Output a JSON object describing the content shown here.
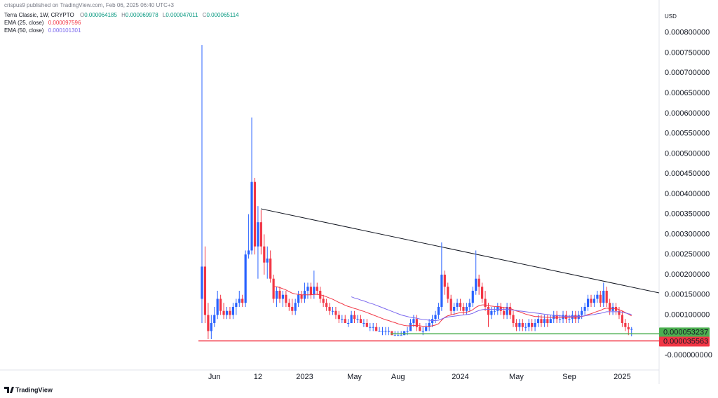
{
  "chart_data": {
    "type": "candlestick",
    "publisher_line": "crispus9 published on TradingView.com, Feb 06, 2025 06:40 UTC+3",
    "title": "Terra Classic, 1W, CRYPTO",
    "ohlc_labels": [
      "O",
      "H",
      "L",
      "C"
    ],
    "currency": "USD",
    "brand": "TradingView",
    "up_color": "#2962ff",
    "down_color": "#f23645",
    "legend_value_color": "#089981",
    "grid": false,
    "categories": [
      null,
      null,
      null,
      null,
      "Jun",
      null,
      null,
      null,
      null,
      null,
      null,
      null,
      null,
      null,
      null,
      null,
      null,
      null,
      "12",
      null,
      null,
      null,
      null,
      null,
      null,
      null,
      null,
      null,
      null,
      null,
      null,
      null,
      null,
      "2023",
      null,
      null,
      null,
      null,
      null,
      null,
      null,
      null,
      null,
      null,
      null,
      null,
      null,
      null,
      null,
      "May",
      null,
      null,
      null,
      null,
      null,
      null,
      null,
      null,
      null,
      null,
      null,
      null,
      null,
      "Aug",
      null,
      null,
      null,
      null,
      null,
      null,
      null,
      null,
      null,
      null,
      null,
      null,
      null,
      null,
      null,
      null,
      null,
      null,
      null,
      "2024",
      null,
      null,
      null,
      null,
      null,
      null,
      null,
      null,
      null,
      null,
      null,
      null,
      null,
      null,
      null,
      null,
      null,
      "May",
      null,
      null,
      null,
      null,
      null,
      null,
      null,
      null,
      null,
      null,
      null,
      null,
      null,
      null,
      null,
      null,
      "Sep",
      null,
      null,
      null,
      null,
      null,
      null,
      null,
      null,
      null,
      null,
      null,
      null,
      null,
      null,
      null,
      null,
      "2025",
      null,
      null,
      null
    ],
    "open": [
      0.00014,
      0.00022,
      0.0001,
      6e-05,
      8e-05,
      0.0001,
      0.00014,
      0.00011,
      0.0001,
      0.00011,
      0.0001,
      0.00012,
      0.00013,
      0.00014,
      0.00013,
      0.00025,
      0.00026,
      0.00043,
      0.00027,
      0.00033,
      0.00027,
      0.00023,
      0.00024,
      0.00019,
      0.00014,
      0.00016,
      0.00014,
      0.00015,
      0.00013,
      0.00012,
      0.00011,
      0.00013,
      0.00015,
      0.00014,
      0.00016,
      0.00017,
      0.00015,
      0.00017,
      0.00016,
      0.00014,
      0.00013,
      0.00012,
      0.00011,
      0.00011,
      0.0001,
      9e-05,
      9e-05,
      8e-05,
      8e-05,
      0.0001,
      9e-05,
      9e-05,
      8e-05,
      8e-05,
      7e-05,
      7e-05,
      7e-05,
      6e-05,
      6e-05,
      6e-05,
      6e-05,
      6e-05,
      5e-05,
      5e-05,
      5e-05,
      5e-05,
      6e-05,
      6e-05,
      8e-05,
      9e-05,
      7e-05,
      6e-05,
      6e-05,
      7e-05,
      8e-05,
      9e-05,
      0.0001,
      0.00012,
      0.0002,
      0.00017,
      0.00014,
      0.00011,
      0.00012,
      0.00013,
      0.00012,
      0.00011,
      0.00012,
      0.00013,
      0.00016,
      0.00019,
      0.00017,
      0.00014,
      0.00012,
      0.0001,
      0.00011,
      0.00011,
      0.00012,
      0.00011,
      0.0001,
      0.00012,
      0.0001,
      8e-05,
      7e-05,
      8e-05,
      7e-05,
      7e-05,
      8e-05,
      7e-05,
      8e-05,
      9e-05,
      8e-05,
      9e-05,
      8e-05,
      9e-05,
      0.0001,
      9e-05,
      9e-05,
      0.0001,
      9e-05,
      9e-05,
      0.0001,
      9e-05,
      0.0001,
      0.00011,
      0.00012,
      0.00014,
      0.00013,
      0.00014,
      0.00015,
      0.00013,
      0.00016,
      0.00013,
      0.00011,
      0.00012,
      0.00011,
      0.0001,
      8e-05,
      7e-05,
      6.4185e-05
    ],
    "high": [
      0.00077,
      0.00027,
      0.00013,
      0.0001,
      0.00012,
      0.00016,
      0.00015,
      0.00013,
      0.00012,
      0.00012,
      0.00013,
      0.00014,
      0.00016,
      0.00015,
      0.00026,
      0.00035,
      0.00059,
      0.00044,
      0.00037,
      0.00036,
      0.0003,
      0.00027,
      0.00026,
      0.0002,
      0.00017,
      0.00017,
      0.00016,
      0.00016,
      0.00014,
      0.00014,
      0.00014,
      0.00016,
      0.00016,
      0.00018,
      0.00018,
      0.00018,
      0.00021,
      0.00018,
      0.00017,
      0.00015,
      0.00014,
      0.00013,
      0.00012,
      0.00012,
      0.00011,
      0.0001,
      0.0001,
      9e-05,
      0.00011,
      0.00011,
      0.0001,
      0.0001,
      9e-05,
      9e-05,
      8e-05,
      8e-05,
      8e-05,
      7e-05,
      7e-05,
      7e-05,
      7e-05,
      6e-05,
      6e-05,
      6e-05,
      6e-05,
      6e-05,
      7e-05,
      9e-05,
      0.0001,
      0.0001,
      8e-05,
      7e-05,
      8e-05,
      9e-05,
      0.0001,
      0.00011,
      0.00013,
      0.00028,
      0.00021,
      0.00018,
      0.00015,
      0.00013,
      0.00014,
      0.00014,
      0.00013,
      0.00013,
      0.00014,
      0.00017,
      0.00026,
      0.0002,
      0.00018,
      0.00016,
      0.00013,
      0.00012,
      0.00012,
      0.00013,
      0.00013,
      0.00012,
      0.00013,
      0.00013,
      0.00011,
      9e-05,
      9e-05,
      9e-05,
      8e-05,
      9e-05,
      9e-05,
      9e-05,
      0.0001,
      0.0001,
      0.0001,
      0.0001,
      0.0001,
      0.00011,
      0.00011,
      0.0001,
      0.00011,
      0.00011,
      0.0001,
      0.00011,
      0.00011,
      0.00011,
      0.00012,
      0.00013,
      0.00015,
      0.00015,
      0.00015,
      0.00016,
      0.00016,
      0.00018,
      0.00017,
      0.00014,
      0.00013,
      0.00013,
      0.00012,
      0.00011,
      9e-05,
      8e-05,
      6.9978e-05
    ],
    "low": [
      8e-05,
      8e-05,
      4e-05,
      4e-05,
      7e-05,
      9e-05,
      0.0001,
      9e-05,
      9e-05,
      9e-05,
      9e-05,
      0.0001,
      0.00012,
      0.00012,
      0.00012,
      0.00024,
      0.00025,
      0.00025,
      0.00019,
      0.00025,
      0.0002,
      0.00019,
      0.00018,
      0.00013,
      0.00012,
      0.00013,
      0.00012,
      0.00012,
      0.00011,
      0.0001,
      0.0001,
      0.00012,
      0.00013,
      0.00013,
      0.00014,
      0.00014,
      0.00014,
      0.00015,
      0.00013,
      0.00012,
      0.00011,
      0.0001,
      0.0001,
      9e-05,
      8e-05,
      8e-05,
      8e-05,
      7e-05,
      8e-05,
      8e-05,
      8e-05,
      8e-05,
      7e-05,
      7e-05,
      6e-05,
      6e-05,
      6e-05,
      6e-05,
      5e-05,
      5e-05,
      5e-05,
      5e-05,
      5e-05,
      5e-05,
      5e-05,
      5e-05,
      5e-05,
      6e-05,
      7e-05,
      6e-05,
      6e-05,
      5e-05,
      6e-05,
      6e-05,
      7e-05,
      8e-05,
      9e-05,
      0.00011,
      0.00015,
      0.00013,
      0.0001,
      0.0001,
      0.00011,
      0.00011,
      0.0001,
      0.0001,
      0.00011,
      0.00012,
      0.00015,
      0.00015,
      0.00013,
      0.00011,
      7e-05,
      9e-05,
      0.0001,
      0.0001,
      0.0001,
      9e-05,
      9e-05,
      9e-05,
      7e-05,
      6e-05,
      6e-05,
      6e-05,
      6e-05,
      6e-05,
      6e-05,
      6e-05,
      7e-05,
      7e-05,
      7e-05,
      7e-05,
      8e-05,
      8e-05,
      8e-05,
      8e-05,
      8e-05,
      8e-05,
      8e-05,
      8e-05,
      8e-05,
      8e-05,
      9e-05,
      0.0001,
      0.00011,
      0.00012,
      0.00012,
      0.00013,
      0.00012,
      0.00012,
      0.00012,
      0.0001,
      0.0001,
      0.0001,
      9e-05,
      7e-05,
      6e-05,
      5e-05,
      4.7011e-05
    ],
    "close": [
      0.00022,
      0.0001,
      6e-05,
      8e-05,
      0.0001,
      0.00014,
      0.00011,
      0.0001,
      0.00011,
      0.0001,
      0.00012,
      0.00013,
      0.00014,
      0.00013,
      0.00025,
      0.00026,
      0.00043,
      0.00027,
      0.00033,
      0.00027,
      0.00023,
      0.00024,
      0.00019,
      0.00014,
      0.00016,
      0.00014,
      0.00015,
      0.00013,
      0.00012,
      0.00011,
      0.00013,
      0.00015,
      0.00014,
      0.00016,
      0.00017,
      0.00015,
      0.00017,
      0.00016,
      0.00014,
      0.00013,
      0.00012,
      0.00011,
      0.00011,
      0.0001,
      9e-05,
      9e-05,
      8e-05,
      8e-05,
      0.0001,
      9e-05,
      9e-05,
      8e-05,
      8e-05,
      7e-05,
      7e-05,
      7e-05,
      6e-05,
      6e-05,
      6e-05,
      6e-05,
      6e-05,
      5e-05,
      5e-05,
      5e-05,
      5e-05,
      6e-05,
      6e-05,
      8e-05,
      9e-05,
      7e-05,
      6e-05,
      6e-05,
      7e-05,
      8e-05,
      9e-05,
      0.0001,
      0.00012,
      0.0002,
      0.00017,
      0.00014,
      0.00011,
      0.00012,
      0.00013,
      0.00012,
      0.00011,
      0.00012,
      0.00013,
      0.00016,
      0.00019,
      0.00017,
      0.00014,
      0.00012,
      0.0001,
      0.00011,
      0.00011,
      0.00012,
      0.00011,
      0.0001,
      0.00012,
      0.0001,
      8e-05,
      7e-05,
      8e-05,
      7e-05,
      7e-05,
      8e-05,
      7e-05,
      8e-05,
      9e-05,
      8e-05,
      9e-05,
      8e-05,
      9e-05,
      0.0001,
      9e-05,
      9e-05,
      0.0001,
      9e-05,
      9e-05,
      0.0001,
      9e-05,
      0.0001,
      0.00011,
      0.00012,
      0.00014,
      0.00013,
      0.00014,
      0.00015,
      0.00013,
      0.00016,
      0.00013,
      0.00011,
      0.00012,
      0.00011,
      0.0001,
      8e-05,
      7e-05,
      6.4185e-05,
      6.5114e-05
    ],
    "series": [
      {
        "name": "EMA (25, close)",
        "color": "#f23645",
        "values": [
          null,
          null,
          null,
          null,
          null,
          null,
          null,
          null,
          null,
          null,
          null,
          null,
          null,
          null,
          null,
          null,
          null,
          null,
          null,
          null,
          null,
          null,
          null,
          0.00017,
          0.00017,
          0.000168,
          0.000165,
          0.000162,
          0.000158,
          0.000154,
          0.000152,
          0.000151,
          0.00015,
          0.00015,
          0.00015,
          0.00015,
          0.000151,
          0.000151,
          0.00015,
          0.000148,
          0.000145,
          0.000142,
          0.000139,
          0.000135,
          0.000131,
          0.000128,
          0.000124,
          0.000121,
          0.000119,
          0.000116,
          0.000114,
          0.000111,
          0.000109,
          0.000106,
          0.000103,
          0.0001,
          9.7e-05,
          9.4e-05,
          9.1e-05,
          8.8e-05,
          8.6e-05,
          8.3e-05,
          8.1e-05,
          7.8e-05,
          7.6e-05,
          7.4e-05,
          7.3e-05,
          7.3e-05,
          7.4e-05,
          7.4e-05,
          7.3e-05,
          7.2e-05,
          7.2e-05,
          7.2e-05,
          7.3e-05,
          7.5e-05,
          7.8e-05,
          8.7e-05,
          9.4e-05,
          9.8e-05,
          0.0001,
          0.000102,
          0.000104,
          0.000106,
          0.000106,
          0.000107,
          0.000109,
          0.000113,
          0.000119,
          0.000123,
          0.000125,
          0.000125,
          0.000123,
          0.000122,
          0.000121,
          0.000121,
          0.00012,
          0.000118,
          0.000118,
          0.000116,
          0.000113,
          0.00011,
          0.000108,
          0.000105,
          0.000102,
          0.0001,
          9.8e-05,
          9.6e-05,
          9.6e-05,
          9.5e-05,
          9.5e-05,
          9.4e-05,
          9.4e-05,
          9.4e-05,
          9.4e-05,
          9.4e-05,
          9.4e-05,
          9.4e-05,
          9.4e-05,
          9.5e-05,
          9.5e-05,
          9.5e-05,
          9.6e-05,
          9.8e-05,
          0.000101,
          0.000103,
          0.000106,
          0.000109,
          0.000111,
          0.000115,
          0.000117,
          0.000116,
          0.000116,
          0.000116,
          0.000113,
          0.00011,
          0.000106,
          0.000102,
          9.7596e-05
        ]
      },
      {
        "name": "EMA (50, close)",
        "color": "#7b68ee",
        "values": [
          null,
          null,
          null,
          null,
          null,
          null,
          null,
          null,
          null,
          null,
          null,
          null,
          null,
          null,
          null,
          null,
          null,
          null,
          null,
          null,
          null,
          null,
          null,
          null,
          null,
          null,
          null,
          null,
          null,
          null,
          null,
          null,
          null,
          null,
          null,
          null,
          null,
          null,
          null,
          null,
          null,
          null,
          null,
          null,
          null,
          null,
          null,
          null,
          0.000145,
          0.000142,
          0.00014,
          0.000137,
          0.000135,
          0.000132,
          0.000129,
          0.000127,
          0.000124,
          0.000121,
          0.000118,
          0.000115,
          0.000112,
          0.000109,
          0.000106,
          0.000103,
          0.0001,
          9.8e-05,
          9.6e-05,
          9.4e-05,
          9.3e-05,
          9.2e-05,
          9e-05,
          8.9e-05,
          8.8e-05,
          8.7e-05,
          8.6e-05,
          8.6e-05,
          8.7e-05,
          9e-05,
          9.3e-05,
          9.5e-05,
          9.6e-05,
          9.7e-05,
          9.8e-05,
          9.9e-05,
          0.0001,
          0.000101,
          0.000102,
          0.000104,
          0.000108,
          0.000111,
          0.000113,
          0.000114,
          0.000114,
          0.000114,
          0.000114,
          0.000114,
          0.000114,
          0.000114,
          0.000114,
          0.000113,
          0.000112,
          0.000111,
          0.00011,
          0.000109,
          0.000108,
          0.000107,
          0.000106,
          0.000105,
          0.000104,
          0.000103,
          0.000102,
          0.000101,
          0.0001,
          9.9e-05,
          9.8e-05,
          9.8e-05,
          9.7e-05,
          9.7e-05,
          9.7e-05,
          9.7e-05,
          9.7e-05,
          9.7e-05,
          9.7e-05,
          9.8e-05,
          9.9e-05,
          0.0001,
          0.000101,
          0.000103,
          0.000104,
          0.000106,
          0.000108,
          0.000108,
          0.000108,
          0.000108,
          0.000108,
          0.000107,
          0.000105,
          0.000103,
          0.000101301
        ]
      }
    ],
    "price_lines": [
      {
        "value": 5.3237e-05,
        "color": "#4caf50",
        "label_text_color": "#131722"
      },
      {
        "value": 3.5563e-05,
        "color": "#f23645",
        "label_text_color": "#ffffff"
      }
    ],
    "ylim": [
      -3.65e-05,
      0.000864
    ],
    "yticks": [
      {
        "value": 0.0008,
        "label": "0.000800000"
      },
      {
        "value": 0.00075,
        "label": "0.000750000"
      },
      {
        "value": 0.0007,
        "label": "0.000700000"
      },
      {
        "value": 0.00065,
        "label": "0.000650000"
      },
      {
        "value": 0.0006,
        "label": "0.000600000"
      },
      {
        "value": 0.00055,
        "label": "0.000550000"
      },
      {
        "value": 0.0005,
        "label": "0.000500000"
      },
      {
        "value": 0.00045,
        "label": "0.000450000"
      },
      {
        "value": 0.0004,
        "label": "0.000400000"
      },
      {
        "value": 0.00035,
        "label": "0.000350000"
      },
      {
        "value": 0.0003,
        "label": "0.000300000"
      },
      {
        "value": 0.00025,
        "label": "0.000250000"
      },
      {
        "value": 0.0002,
        "label": "0.000200000"
      },
      {
        "value": 0.00015,
        "label": "0.000150000"
      },
      {
        "value": 0.0001,
        "label": "0.000100000"
      },
      {
        "value": 0,
        "label": "-0.000000000"
      }
    ]
  }
}
